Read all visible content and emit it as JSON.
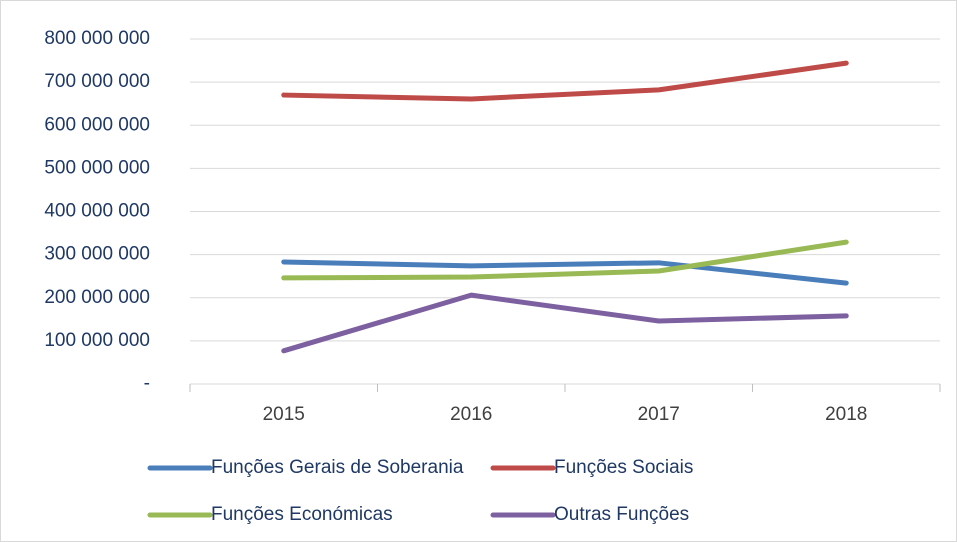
{
  "chart_data": {
    "type": "line",
    "categories": [
      "2015",
      "2016",
      "2017",
      "2018"
    ],
    "series": [
      {
        "name": "Funções Gerais de Soberania",
        "color": "#4a7ebb",
        "values": [
          283000000,
          274000000,
          281000000,
          234000000
        ]
      },
      {
        "name": "Funções Sociais",
        "color": "#be4b48",
        "values": [
          670000000,
          661000000,
          682000000,
          744000000
        ]
      },
      {
        "name": "Funções Económicas",
        "color": "#98b954",
        "values": [
          246000000,
          248000000,
          262000000,
          329000000
        ]
      },
      {
        "name": "Outras Funções",
        "color": "#7d60a0",
        "values": [
          77000000,
          206000000,
          146000000,
          158000000
        ]
      }
    ],
    "ylim": [
      0,
      800000000
    ],
    "yticks": [
      {
        "value": 0,
        "label": "-"
      },
      {
        "value": 100000000,
        "label": "100 000 000"
      },
      {
        "value": 200000000,
        "label": "200 000 000"
      },
      {
        "value": 300000000,
        "label": "300 000 000"
      },
      {
        "value": 400000000,
        "label": "400 000 000"
      },
      {
        "value": 500000000,
        "label": "500 000 000"
      },
      {
        "value": 600000000,
        "label": "600 000 000"
      },
      {
        "value": 700000000,
        "label": "700 000 000"
      },
      {
        "value": 800000000,
        "label": "800 000 000"
      }
    ],
    "grid": true
  }
}
